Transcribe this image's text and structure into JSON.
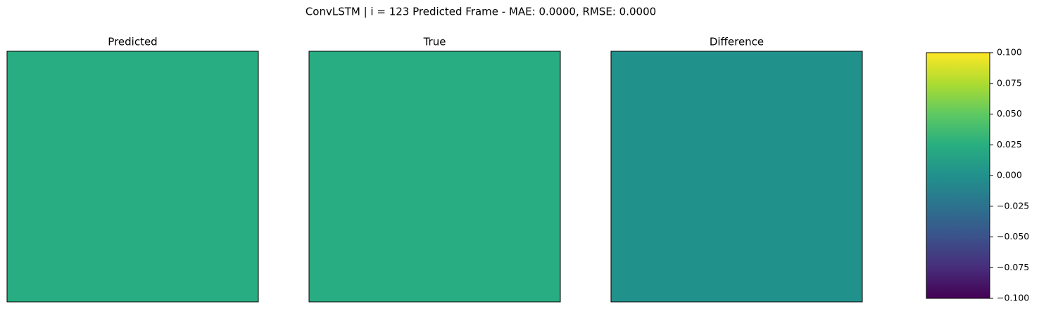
{
  "title": "ConvLSTM | i = 123 Predicted Frame - MAE: 0.0000, RMSE: 0.0000",
  "chart_data": [
    {
      "type": "image",
      "title": "Predicted",
      "color": "#27ad81"
    },
    {
      "type": "image",
      "title": "True",
      "color": "#27ad81"
    },
    {
      "type": "image",
      "title": "Difference",
      "value": 0
    },
    {
      "type": "colorbar",
      "colors": [
        "#440154",
        "#472d7b",
        "#3b528b",
        "#2c728e",
        "#21918c",
        "#28ae80",
        "#5ec962",
        "#addc30",
        "#fde725"
      ],
      "ylim": [
        -0.1,
        0.1
      ],
      "yticks": [
        {
          "value": -0.1,
          "label": "−0.100"
        },
        {
          "value": -0.075,
          "label": "−0.075"
        },
        {
          "value": -0.05,
          "label": "−0.050"
        },
        {
          "value": -0.025,
          "label": "−0.025"
        },
        {
          "value": 0,
          "label": "0.000"
        },
        {
          "value": 0.025,
          "label": "0.025"
        },
        {
          "value": 0.05,
          "label": "0.050"
        },
        {
          "value": 0.075,
          "label": "0.075"
        },
        {
          "value": 0.1,
          "label": "0.100"
        }
      ]
    }
  ]
}
